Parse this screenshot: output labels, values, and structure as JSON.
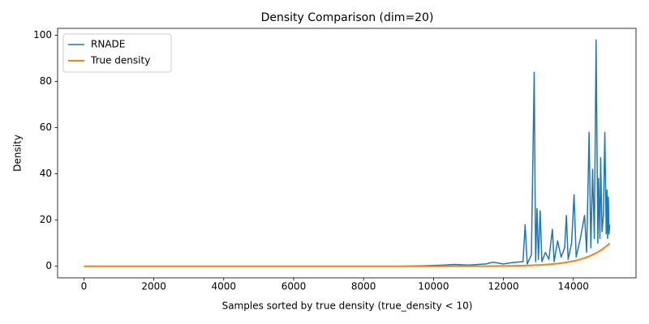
{
  "chart_data": {
    "type": "line",
    "title": "Density Comparison (dim=20)",
    "x_label": "Samples sorted by true density (true_density < 10)",
    "y_label": "Density",
    "x": [
      0,
      1000,
      2000,
      3000,
      4000,
      5000,
      6000,
      7000,
      8000,
      9000,
      9700,
      10300,
      10600,
      11000,
      11500,
      11700,
      12000,
      12200,
      12400,
      12560,
      12620,
      12680,
      12800,
      12880,
      12920,
      12960,
      13000,
      13050,
      13100,
      13200,
      13300,
      13400,
      13450,
      13550,
      13650,
      13750,
      13800,
      13850,
      13950,
      14020,
      14080,
      14200,
      14320,
      14380,
      14450,
      14500,
      14550,
      14600,
      14650,
      14700,
      14720,
      14760,
      14780,
      14820,
      14860,
      14900,
      14940,
      14960,
      14980,
      15000,
      15020,
      15040
    ],
    "series": [
      {
        "name": "RNADE",
        "color": "#1f77b4",
        "width": 1.5,
        "values": [
          0,
          0,
          0,
          0,
          0,
          0,
          0,
          0,
          0,
          0,
          0.2,
          0.5,
          0.8,
          0.5,
          1,
          1.8,
          1,
          1.5,
          1.8,
          2,
          18,
          1,
          5,
          84,
          2,
          25,
          3,
          24,
          2,
          6,
          3,
          16,
          2,
          11,
          4,
          8,
          22,
          3,
          10,
          31,
          4,
          12,
          22,
          6,
          58,
          8,
          42,
          12,
          98,
          10,
          38,
          12,
          47,
          15,
          22,
          58,
          14,
          33,
          12,
          30,
          14,
          18
        ]
      },
      {
        "name": "True density",
        "color": "#ff7f0e",
        "width": 2,
        "values": [
          0,
          0,
          0,
          0,
          0,
          0,
          0,
          0,
          0,
          0,
          0,
          0.01,
          0.02,
          0.03,
          0.06,
          0.08,
          0.13,
          0.17,
          0.23,
          0.29,
          0.31,
          0.34,
          0.41,
          0.46,
          0.48,
          0.51,
          0.54,
          0.58,
          0.63,
          0.72,
          0.83,
          0.96,
          1.03,
          1.19,
          1.37,
          1.58,
          1.7,
          1.83,
          2.11,
          2.33,
          2.54,
          3.01,
          3.58,
          3.9,
          4.3,
          4.62,
          4.97,
          5.33,
          5.73,
          6.15,
          6.33,
          6.7,
          6.9,
          7.3,
          7.73,
          8.19,
          8.67,
          8.92,
          9.18,
          9.44,
          9.72,
          10
        ]
      }
    ],
    "xlim": [
      -752,
      15792
    ],
    "ylim": [
      -5,
      103
    ],
    "xticks": [
      0,
      2000,
      4000,
      6000,
      8000,
      10000,
      12000,
      14000
    ],
    "yticks": [
      0,
      20,
      40,
      60,
      80,
      100
    ],
    "grid": false,
    "legend": "upper left"
  }
}
